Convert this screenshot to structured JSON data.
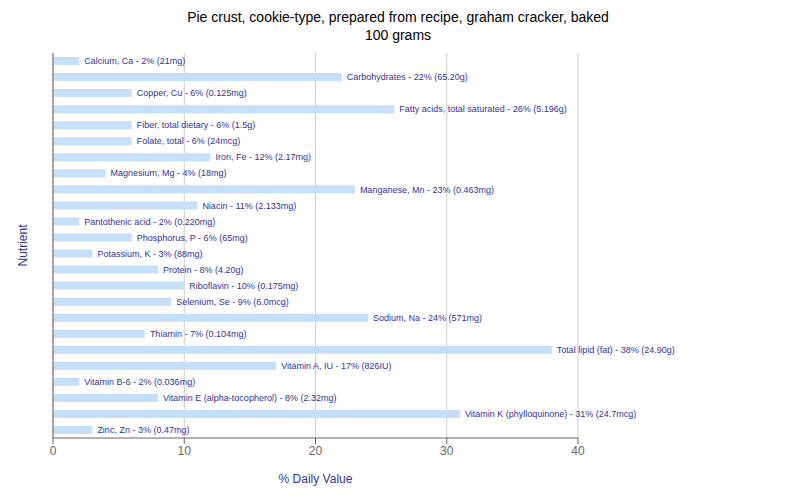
{
  "chart_data": {
    "type": "bar",
    "orientation": "horizontal",
    "title": "Pie crust, cookie-type, prepared from recipe, graham cracker, baked\n100 grams",
    "xlabel": "% Daily Value",
    "ylabel": "Nutrient",
    "categories": [
      "Calcium, Ca - 2% (21mg)",
      "Carbohydrates - 22% (65.20g)",
      "Copper, Cu - 6% (0.125mg)",
      "Fatty acids, total saturated - 26% (5.196g)",
      "Fiber, total dietary - 6% (1.5g)",
      "Folate, total - 6% (24mcg)",
      "Iron, Fe - 12% (2.17mg)",
      "Magnesium, Mg - 4% (18mg)",
      "Manganese, Mn - 23% (0.463mg)",
      "Niacin - 11% (2.133mg)",
      "Pantothenic acid - 2% (0.220mg)",
      "Phosphorus, P - 6% (65mg)",
      "Potassium, K - 3% (88mg)",
      "Protein - 8% (4.20g)",
      "Riboflavin - 10% (0.175mg)",
      "Selenium, Se - 9% (6.0mcg)",
      "Sodium, Na - 24% (571mg)",
      "Thiamin - 7% (0.104mg)",
      "Total lipid (fat) - 38% (24.90g)",
      "Vitamin A, IU - 17% (826IU)",
      "Vitamin B-6 - 2% (0.036mg)",
      "Vitamin E (alpha-tocopherol) - 8% (2.32mg)",
      "Vitamin K (phylloquinone) - 31% (24.7mcg)",
      "Zinc, Zn - 3% (0.47mg)"
    ],
    "values": [
      2,
      22,
      6,
      26,
      6,
      6,
      12,
      4,
      23,
      11,
      2,
      6,
      3,
      8,
      10,
      9,
      24,
      7,
      38,
      17,
      2,
      8,
      31,
      3
    ],
    "color": "#c5dff8",
    "xlim": [
      0,
      40
    ],
    "xticks": [
      0,
      10,
      20,
      30,
      40
    ],
    "grid": true,
    "tick_labels": "x"
  }
}
